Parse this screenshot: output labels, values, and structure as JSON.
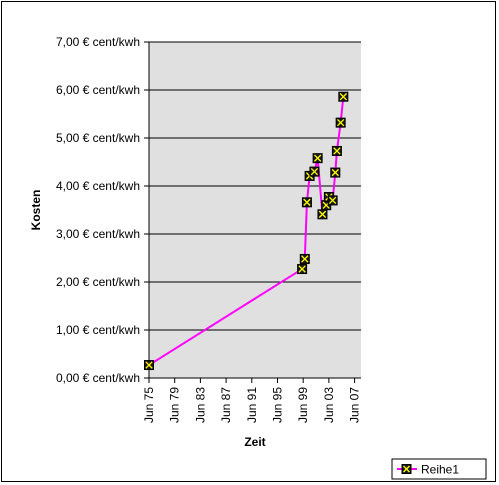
{
  "chart_data": {
    "type": "line",
    "title": "",
    "xlabel": "Zeit",
    "ylabel": "Kosten",
    "ylim": [
      0,
      7
    ],
    "yticks": [
      0,
      1,
      2,
      3,
      4,
      5,
      6,
      7
    ],
    "ytick_labels": [
      "0,00 € cent/kwh",
      "1,00 € cent/kwh",
      "2,00 € cent/kwh",
      "3,00 € cent/kwh",
      "4,00 € cent/kwh",
      "5,00 € cent/kwh",
      "6,00 € cent/kwh",
      "7,00 € cent/kwh"
    ],
    "xlim": [
      "1975-06",
      "2008-06"
    ],
    "xticks": [
      "1975-06",
      "1979-06",
      "1983-06",
      "1987-06",
      "1991-06",
      "1995-06",
      "1999-06",
      "2003-06",
      "2007-06"
    ],
    "xtick_labels": [
      "Jun 75",
      "Jun 79",
      "Jun 83",
      "Jun 87",
      "Jun 91",
      "Jun 95",
      "Jun 99",
      "Jun 03",
      "Jun 07"
    ],
    "grid": "horizontal",
    "plot_background": "#e0e0e0",
    "legend_position": "bottom-right",
    "series": [
      {
        "name": "Reihe1",
        "color": "#ff00ff",
        "marker": "x-box",
        "marker_fill": "#1a1a1a",
        "marker_color": "#ffff00",
        "points": [
          {
            "x": "1975-06",
            "y": 0.27
          },
          {
            "x": "1999-04",
            "y": 2.27
          },
          {
            "x": "1999-09",
            "y": 2.48
          },
          {
            "x": "2000-01",
            "y": 3.66
          },
          {
            "x": "2000-06",
            "y": 4.21
          },
          {
            "x": "2001-03",
            "y": 4.3
          },
          {
            "x": "2001-09",
            "y": 4.58
          },
          {
            "x": "2002-06",
            "y": 3.41
          },
          {
            "x": "2003-01",
            "y": 3.6
          },
          {
            "x": "2003-06",
            "y": 3.77
          },
          {
            "x": "2004-01",
            "y": 3.7
          },
          {
            "x": "2004-06",
            "y": 4.28
          },
          {
            "x": "2004-09",
            "y": 4.73
          },
          {
            "x": "2005-04",
            "y": 5.32
          },
          {
            "x": "2005-09",
            "y": 5.86
          }
        ]
      }
    ]
  }
}
